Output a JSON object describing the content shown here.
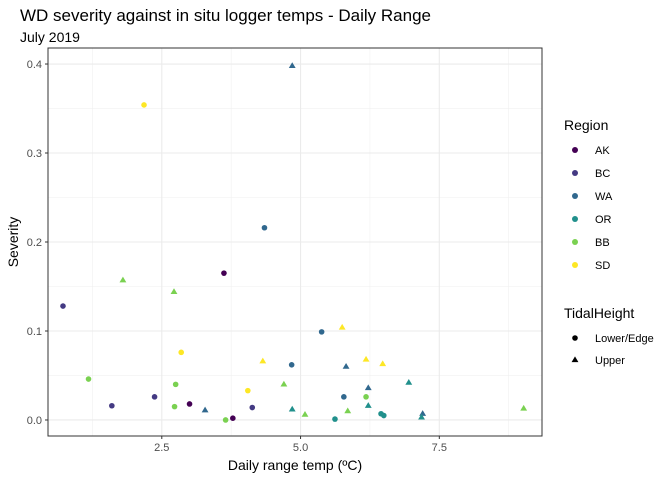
{
  "chart_data": {
    "type": "scatter",
    "title": "WD severity against in situ logger temps - Daily Range",
    "subtitle": "July 2019",
    "xlabel": "Daily range temp (ºC)",
    "ylabel": "Severity",
    "xlim": [
      0.45,
      9.35
    ],
    "ylim": [
      -0.018,
      0.418
    ],
    "x_ticks": [
      2.5,
      5.0,
      7.5
    ],
    "x_tick_labels": [
      "2.5",
      "5.0",
      "7.5"
    ],
    "y_ticks": [
      0.0,
      0.1,
      0.2,
      0.3,
      0.4
    ],
    "y_tick_labels": [
      "0.0",
      "0.1",
      "0.2",
      "0.3",
      "0.4"
    ],
    "grid": true,
    "legend_position": "right",
    "colors": {
      "AK": "#440154",
      "BC": "#443A83",
      "WA": "#31688E",
      "OR": "#21908C",
      "BB": "#7AD151",
      "SD": "#FDE725"
    },
    "legend_region": {
      "title": "Region",
      "items": [
        "AK",
        "BC",
        "WA",
        "OR",
        "BB",
        "SD"
      ]
    },
    "legend_tidal": {
      "title": "TidalHeight",
      "items": [
        {
          "label": "Lower/Edge",
          "shape": "circle"
        },
        {
          "label": "Upper",
          "shape": "triangle"
        }
      ]
    },
    "points": [
      {
        "x": 3.62,
        "y": 0.165,
        "region": "AK",
        "tidal": "Lower/Edge"
      },
      {
        "x": 3.0,
        "y": 0.018,
        "region": "AK",
        "tidal": "Lower/Edge"
      },
      {
        "x": 3.78,
        "y": 0.002,
        "region": "AK",
        "tidal": "Lower/Edge"
      },
      {
        "x": 0.72,
        "y": 0.128,
        "region": "BC",
        "tidal": "Lower/Edge"
      },
      {
        "x": 1.6,
        "y": 0.016,
        "region": "BC",
        "tidal": "Lower/Edge"
      },
      {
        "x": 2.37,
        "y": 0.026,
        "region": "BC",
        "tidal": "Lower/Edge"
      },
      {
        "x": 4.13,
        "y": 0.014,
        "region": "BC",
        "tidal": "Lower/Edge"
      },
      {
        "x": 4.35,
        "y": 0.216,
        "region": "WA",
        "tidal": "Lower/Edge"
      },
      {
        "x": 4.84,
        "y": 0.062,
        "region": "WA",
        "tidal": "Lower/Edge"
      },
      {
        "x": 5.38,
        "y": 0.099,
        "region": "WA",
        "tidal": "Lower/Edge"
      },
      {
        "x": 5.78,
        "y": 0.026,
        "region": "WA",
        "tidal": "Lower/Edge"
      },
      {
        "x": 4.85,
        "y": 0.398,
        "region": "WA",
        "tidal": "Upper"
      },
      {
        "x": 3.28,
        "y": 0.011,
        "region": "WA",
        "tidal": "Upper"
      },
      {
        "x": 5.82,
        "y": 0.06,
        "region": "WA",
        "tidal": "Upper"
      },
      {
        "x": 6.22,
        "y": 0.036,
        "region": "WA",
        "tidal": "Upper"
      },
      {
        "x": 7.2,
        "y": 0.007,
        "region": "WA",
        "tidal": "Upper"
      },
      {
        "x": 5.62,
        "y": 0.001,
        "region": "OR",
        "tidal": "Lower/Edge"
      },
      {
        "x": 6.45,
        "y": 0.007,
        "region": "OR",
        "tidal": "Lower/Edge"
      },
      {
        "x": 6.5,
        "y": 0.005,
        "region": "OR",
        "tidal": "Lower/Edge"
      },
      {
        "x": 4.85,
        "y": 0.012,
        "region": "OR",
        "tidal": "Upper"
      },
      {
        "x": 6.22,
        "y": 0.016,
        "region": "OR",
        "tidal": "Upper"
      },
      {
        "x": 6.95,
        "y": 0.042,
        "region": "OR",
        "tidal": "Upper"
      },
      {
        "x": 7.18,
        "y": 0.003,
        "region": "OR",
        "tidal": "Upper"
      },
      {
        "x": 1.18,
        "y": 0.046,
        "region": "BB",
        "tidal": "Lower/Edge"
      },
      {
        "x": 2.75,
        "y": 0.04,
        "region": "BB",
        "tidal": "Lower/Edge"
      },
      {
        "x": 2.73,
        "y": 0.015,
        "region": "BB",
        "tidal": "Lower/Edge"
      },
      {
        "x": 3.65,
        "y": 0.0,
        "region": "BB",
        "tidal": "Lower/Edge"
      },
      {
        "x": 6.18,
        "y": 0.026,
        "region": "BB",
        "tidal": "Lower/Edge"
      },
      {
        "x": 1.8,
        "y": 0.157,
        "region": "BB",
        "tidal": "Upper"
      },
      {
        "x": 2.72,
        "y": 0.144,
        "region": "BB",
        "tidal": "Upper"
      },
      {
        "x": 4.7,
        "y": 0.04,
        "region": "BB",
        "tidal": "Upper"
      },
      {
        "x": 5.08,
        "y": 0.006,
        "region": "BB",
        "tidal": "Upper"
      },
      {
        "x": 5.85,
        "y": 0.01,
        "region": "BB",
        "tidal": "Upper"
      },
      {
        "x": 9.02,
        "y": 0.013,
        "region": "BB",
        "tidal": "Upper"
      },
      {
        "x": 2.18,
        "y": 0.354,
        "region": "SD",
        "tidal": "Lower/Edge"
      },
      {
        "x": 2.85,
        "y": 0.076,
        "region": "SD",
        "tidal": "Lower/Edge"
      },
      {
        "x": 4.05,
        "y": 0.033,
        "region": "SD",
        "tidal": "Lower/Edge"
      },
      {
        "x": 4.32,
        "y": 0.066,
        "region": "SD",
        "tidal": "Upper"
      },
      {
        "x": 5.75,
        "y": 0.104,
        "region": "SD",
        "tidal": "Upper"
      },
      {
        "x": 6.18,
        "y": 0.068,
        "region": "SD",
        "tidal": "Upper"
      },
      {
        "x": 6.48,
        "y": 0.063,
        "region": "SD",
        "tidal": "Upper"
      }
    ]
  }
}
